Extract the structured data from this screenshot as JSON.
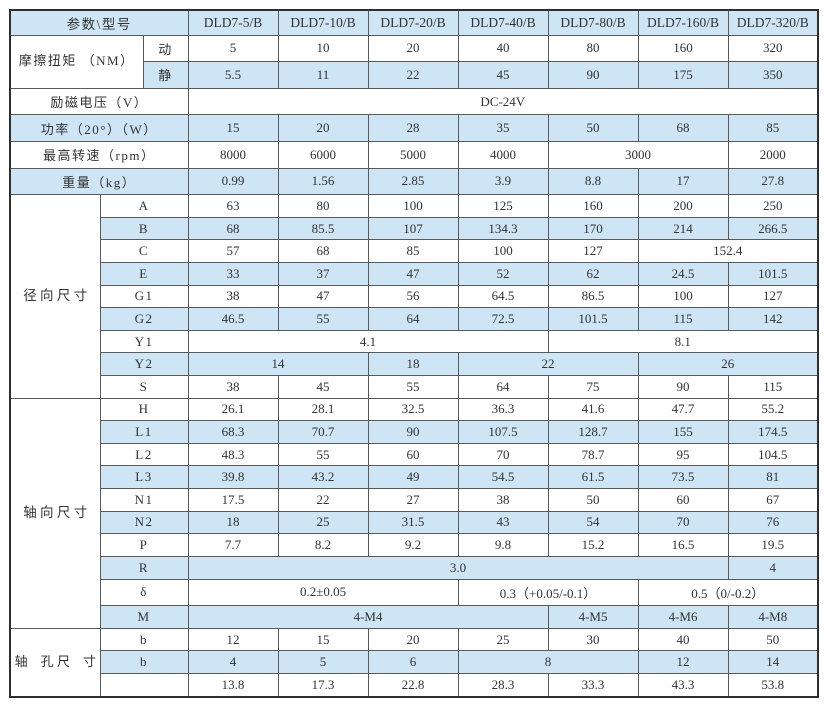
{
  "colors": {
    "row_shade": "#cde5f4",
    "grid_line": "#5a5a5a",
    "outer_border": "#2f2f2f",
    "text": "#333333"
  },
  "table": {
    "corner_label": "参数\\型号",
    "models": [
      "DLD7-5/B",
      "DLD7-10/B",
      "DLD7-20/B",
      "DLD7-40/B",
      "DLD7-80/B",
      "DLD7-160/B",
      "DLD7-320/B"
    ],
    "rows": [
      {
        "shade": true,
        "cells": [
          {
            "t": "参数\\型号",
            "cs": 3,
            "cls": "lab",
            "name": "corner-header"
          },
          {
            "t": "DLD7-5/B",
            "name": "column-header"
          },
          {
            "t": "DLD7-10/B",
            "name": "column-header"
          },
          {
            "t": "DLD7-20/B",
            "name": "column-header"
          },
          {
            "t": "DLD7-40/B",
            "name": "column-header"
          },
          {
            "t": "DLD7-80/B",
            "name": "column-header"
          },
          {
            "t": "DLD7-160/B",
            "name": "column-header"
          },
          {
            "t": "DLD7-320/B",
            "name": "column-header"
          }
        ],
        "head": true
      },
      {
        "shade": false,
        "cells": [
          {
            "t": "摩擦扭矩\n（NM）",
            "cs": 2,
            "rs": 2,
            "cls": "lab white pre",
            "name": "row-label"
          },
          {
            "t": "动",
            "cls": "lab",
            "name": "row-sublabel"
          },
          {
            "t": "5"
          },
          {
            "t": "10"
          },
          {
            "t": "20"
          },
          {
            "t": "40"
          },
          {
            "t": "80"
          },
          {
            "t": "160"
          },
          {
            "t": "320"
          }
        ]
      },
      {
        "shade": true,
        "cells": [
          {
            "t": "静",
            "cls": "lab",
            "name": "row-sublabel"
          },
          {
            "t": "5.5"
          },
          {
            "t": "11"
          },
          {
            "t": "22"
          },
          {
            "t": "45"
          },
          {
            "t": "90"
          },
          {
            "t": "175"
          },
          {
            "t": "350"
          }
        ]
      },
      {
        "shade": false,
        "cells": [
          {
            "t": "励磁电压（V）",
            "cs": 3,
            "cls": "lab",
            "name": "row-label"
          },
          {
            "t": "DC-24V",
            "cs": 7
          }
        ]
      },
      {
        "shade": true,
        "cells": [
          {
            "t": "功率（20°）（W）",
            "cs": 3,
            "cls": "lab",
            "name": "row-label"
          },
          {
            "t": "15"
          },
          {
            "t": "20"
          },
          {
            "t": "28"
          },
          {
            "t": "35"
          },
          {
            "t": "50"
          },
          {
            "t": "68"
          },
          {
            "t": "85"
          }
        ]
      },
      {
        "shade": false,
        "cells": [
          {
            "t": "最高转速（rpm）",
            "cs": 3,
            "cls": "lab",
            "name": "row-label"
          },
          {
            "t": "8000"
          },
          {
            "t": "6000"
          },
          {
            "t": "5000"
          },
          {
            "t": "4000"
          },
          {
            "t": "3000",
            "cs": 2
          },
          {
            "t": "2000"
          }
        ]
      },
      {
        "shade": true,
        "cells": [
          {
            "t": "重量（kg）",
            "cs": 3,
            "cls": "lab",
            "name": "row-label"
          },
          {
            "t": "0.99"
          },
          {
            "t": "1.56"
          },
          {
            "t": "2.85"
          },
          {
            "t": "3.9"
          },
          {
            "t": "8.8"
          },
          {
            "t": "17"
          },
          {
            "t": "27.8"
          }
        ]
      },
      {
        "shade": false,
        "cells": [
          {
            "t": "径\n向\n尺\n寸",
            "rs": 9,
            "cls": "sec vert",
            "name": "section-label"
          },
          {
            "t": "A",
            "cs": 2,
            "cls": "lab",
            "name": "row-sublabel"
          },
          {
            "t": "63"
          },
          {
            "t": "80"
          },
          {
            "t": "100"
          },
          {
            "t": "125"
          },
          {
            "t": "160"
          },
          {
            "t": "200"
          },
          {
            "t": "250"
          }
        ]
      },
      {
        "shade": true,
        "cells": [
          {
            "t": "B",
            "cs": 2,
            "cls": "lab",
            "name": "row-sublabel"
          },
          {
            "t": "68"
          },
          {
            "t": "85.5"
          },
          {
            "t": "107"
          },
          {
            "t": "134.3"
          },
          {
            "t": "170"
          },
          {
            "t": "214"
          },
          {
            "t": "266.5"
          }
        ]
      },
      {
        "shade": false,
        "cells": [
          {
            "t": "C",
            "cs": 2,
            "cls": "lab",
            "name": "row-sublabel"
          },
          {
            "t": "57"
          },
          {
            "t": "68"
          },
          {
            "t": "85"
          },
          {
            "t": "100"
          },
          {
            "t": "127"
          },
          {
            "t": "152.4",
            "cs": 2
          }
        ]
      },
      {
        "shade": true,
        "cells": [
          {
            "t": "E",
            "cs": 2,
            "cls": "lab",
            "name": "row-sublabel"
          },
          {
            "t": "33"
          },
          {
            "t": "37"
          },
          {
            "t": "47"
          },
          {
            "t": "52"
          },
          {
            "t": "62"
          },
          {
            "t": "24.5"
          },
          {
            "t": "101.5"
          }
        ]
      },
      {
        "shade": false,
        "cells": [
          {
            "t": "G1",
            "cs": 2,
            "cls": "lab",
            "name": "row-sublabel"
          },
          {
            "t": "38"
          },
          {
            "t": "47"
          },
          {
            "t": "56"
          },
          {
            "t": "64.5"
          },
          {
            "t": "86.5"
          },
          {
            "t": "100"
          },
          {
            "t": "127"
          }
        ]
      },
      {
        "shade": true,
        "cells": [
          {
            "t": "G2",
            "cs": 2,
            "cls": "lab",
            "name": "row-sublabel"
          },
          {
            "t": "46.5"
          },
          {
            "t": "55"
          },
          {
            "t": "64"
          },
          {
            "t": "72.5"
          },
          {
            "t": "101.5"
          },
          {
            "t": "115"
          },
          {
            "t": "142"
          }
        ]
      },
      {
        "shade": false,
        "cells": [
          {
            "t": "Y1",
            "cs": 2,
            "cls": "lab",
            "name": "row-sublabel"
          },
          {
            "t": "4.1",
            "cs": 4
          },
          {
            "t": "8.1",
            "cs": 3
          }
        ]
      },
      {
        "shade": true,
        "cells": [
          {
            "t": "Y2",
            "cs": 2,
            "cls": "lab",
            "name": "row-sublabel"
          },
          {
            "t": "14",
            "cs": 2
          },
          {
            "t": "18"
          },
          {
            "t": "22",
            "cs": 2
          },
          {
            "t": "26",
            "cs": 2
          }
        ]
      },
      {
        "shade": false,
        "cells": [
          {
            "t": "S",
            "cs": 2,
            "cls": "lab",
            "name": "row-sublabel"
          },
          {
            "t": "38"
          },
          {
            "t": "45"
          },
          {
            "t": "55"
          },
          {
            "t": "64"
          },
          {
            "t": "75"
          },
          {
            "t": "90"
          },
          {
            "t": "115"
          }
        ]
      },
      {
        "shade": false,
        "cells": [
          {
            "t": "轴\n向\n尺\n寸",
            "rs": 10,
            "cls": "sec vert",
            "name": "section-label"
          },
          {
            "t": "H",
            "cs": 2,
            "cls": "lab",
            "name": "row-sublabel"
          },
          {
            "t": "26.1"
          },
          {
            "t": "28.1"
          },
          {
            "t": "32.5"
          },
          {
            "t": "36.3"
          },
          {
            "t": "41.6"
          },
          {
            "t": "47.7"
          },
          {
            "t": "55.2"
          }
        ]
      },
      {
        "shade": true,
        "cells": [
          {
            "t": "L1",
            "cs": 2,
            "cls": "lab",
            "name": "row-sublabel"
          },
          {
            "t": "68.3"
          },
          {
            "t": "70.7"
          },
          {
            "t": "90"
          },
          {
            "t": "107.5"
          },
          {
            "t": "128.7"
          },
          {
            "t": "155"
          },
          {
            "t": "174.5"
          }
        ]
      },
      {
        "shade": false,
        "cells": [
          {
            "t": "L2",
            "cs": 2,
            "cls": "lab",
            "name": "row-sublabel"
          },
          {
            "t": "48.3"
          },
          {
            "t": "55"
          },
          {
            "t": "60"
          },
          {
            "t": "70"
          },
          {
            "t": "78.7"
          },
          {
            "t": "95"
          },
          {
            "t": "104.5"
          }
        ]
      },
      {
        "shade": true,
        "cells": [
          {
            "t": "L3",
            "cs": 2,
            "cls": "lab",
            "name": "row-sublabel"
          },
          {
            "t": "39.8"
          },
          {
            "t": "43.2"
          },
          {
            "t": "49"
          },
          {
            "t": "54.5"
          },
          {
            "t": "61.5"
          },
          {
            "t": "73.5"
          },
          {
            "t": "81"
          }
        ]
      },
      {
        "shade": false,
        "cells": [
          {
            "t": "N1",
            "cs": 2,
            "cls": "lab",
            "name": "row-sublabel"
          },
          {
            "t": "17.5"
          },
          {
            "t": "22"
          },
          {
            "t": "27"
          },
          {
            "t": "38"
          },
          {
            "t": "50"
          },
          {
            "t": "60"
          },
          {
            "t": "67"
          }
        ]
      },
      {
        "shade": true,
        "cells": [
          {
            "t": "N2",
            "cs": 2,
            "cls": "lab",
            "name": "row-sublabel"
          },
          {
            "t": "18"
          },
          {
            "t": "25"
          },
          {
            "t": "31.5"
          },
          {
            "t": "43"
          },
          {
            "t": "54"
          },
          {
            "t": "70"
          },
          {
            "t": "76"
          }
        ]
      },
      {
        "shade": false,
        "cells": [
          {
            "t": "P",
            "cs": 2,
            "cls": "lab",
            "name": "row-sublabel"
          },
          {
            "t": "7.7"
          },
          {
            "t": "8.2"
          },
          {
            "t": "9.2"
          },
          {
            "t": "9.8"
          },
          {
            "t": "15.2"
          },
          {
            "t": "16.5"
          },
          {
            "t": "19.5"
          }
        ]
      },
      {
        "shade": true,
        "cells": [
          {
            "t": "R",
            "cs": 2,
            "cls": "lab",
            "name": "row-sublabel"
          },
          {
            "t": "3.0",
            "cs": 6
          },
          {
            "t": "4"
          }
        ]
      },
      {
        "shade": false,
        "cells": [
          {
            "t": "δ",
            "cs": 2,
            "cls": "lab",
            "name": "row-sublabel"
          },
          {
            "t": "0.2±0.05",
            "cs": 3
          },
          {
            "t": "0.3（+0.05/-0.1）",
            "cs": 2
          },
          {
            "t": "0.5（0/-0.2）",
            "cs": 2
          }
        ]
      },
      {
        "shade": true,
        "cells": [
          {
            "t": "M",
            "cs": 2,
            "cls": "lab",
            "name": "row-sublabel"
          },
          {
            "t": "4-M4",
            "cs": 4
          },
          {
            "t": "4-M5"
          },
          {
            "t": "4-M6"
          },
          {
            "t": "4-M8"
          }
        ]
      },
      {
        "shade": false,
        "cells": [
          {
            "t": "轴　孔\n尺　寸",
            "rs": 3,
            "cls": "sec pre",
            "name": "section-label"
          },
          {
            "t": "b",
            "cs": 2,
            "cls": "lab",
            "name": "row-sublabel"
          },
          {
            "t": "12"
          },
          {
            "t": "15"
          },
          {
            "t": "20"
          },
          {
            "t": "25"
          },
          {
            "t": "30"
          },
          {
            "t": "40"
          },
          {
            "t": "50"
          }
        ]
      },
      {
        "shade": true,
        "cells": [
          {
            "t": "b",
            "cs": 2,
            "cls": "lab",
            "name": "row-sublabel"
          },
          {
            "t": "4"
          },
          {
            "t": "5"
          },
          {
            "t": "6"
          },
          {
            "t": "8",
            "cs": 2
          },
          {
            "t": "12"
          },
          {
            "t": "14"
          }
        ]
      },
      {
        "shade": false,
        "cells": [
          {
            "t": "",
            "cs": 2,
            "cls": "lab",
            "name": "row-sublabel"
          },
          {
            "t": "13.8"
          },
          {
            "t": "17.3"
          },
          {
            "t": "22.8"
          },
          {
            "t": "28.3"
          },
          {
            "t": "33.3"
          },
          {
            "t": "43.3"
          },
          {
            "t": "53.8"
          }
        ]
      }
    ]
  }
}
